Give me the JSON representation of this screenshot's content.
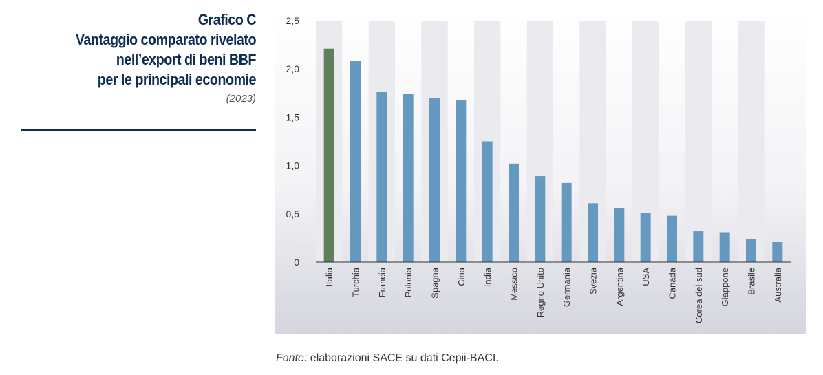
{
  "header": {
    "label": "Grafico C",
    "title_lines": [
      "Vantaggio comparato rivelato",
      "nell’export di beni BBF",
      "per le principali economie"
    ],
    "year": "(2023)"
  },
  "source": {
    "prefix": "Fonte:",
    "text": " elaborazioni SACE su dati Cepii-BACI."
  },
  "colors": {
    "highlight": "#5f7e5b",
    "bar": "#6699bf",
    "stripe": "#ebebef",
    "axis": "#333333",
    "text": "#333333"
  },
  "chart_data": {
    "type": "bar",
    "title": "Vantaggio comparato rivelato nell’export di beni BBF per le principali economie",
    "xlabel": "",
    "ylabel": "",
    "ylim": [
      0,
      2.5
    ],
    "yticks": [
      0,
      0.5,
      1.0,
      1.5,
      2.0,
      2.5
    ],
    "ytick_labels": [
      "0",
      "0,5",
      "1,0",
      "1,5",
      "2,0",
      "2,5"
    ],
    "categories": [
      "Italia",
      "Turchia",
      "Francia",
      "Polonia",
      "Spagna",
      "Cina",
      "India",
      "Messico",
      "Regno Unito",
      "Germania",
      "Svezia",
      "Argentina",
      "USA",
      "Canada",
      "Corea del sud",
      "Giappone",
      "Brasile",
      "Australia"
    ],
    "values": [
      2.21,
      2.08,
      1.76,
      1.74,
      1.7,
      1.68,
      1.25,
      1.02,
      0.89,
      0.82,
      0.61,
      0.56,
      0.51,
      0.48,
      0.32,
      0.31,
      0.24,
      0.21
    ],
    "highlight_index": 0
  }
}
